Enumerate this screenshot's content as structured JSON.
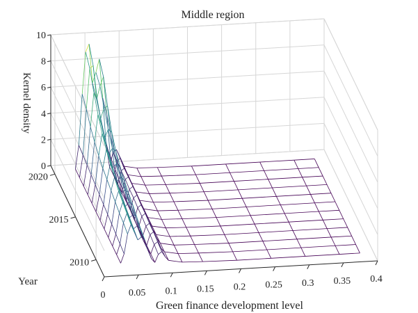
{
  "chart_data": {
    "type": "surface",
    "title": "Middle region",
    "xlabel": "Green finance development level",
    "ylabel": "Year",
    "zlabel": "Kernel density",
    "x_ticks": [
      "0",
      "0.05",
      "0.1",
      "0.15",
      "0.2",
      "0.25",
      "0.3",
      "0.35",
      "0.4"
    ],
    "y_ticks": [
      "2010",
      "2015",
      "2020"
    ],
    "z_ticks": [
      "0",
      "2",
      "4",
      "6",
      "8",
      "10"
    ],
    "xlim": [
      0,
      0.4
    ],
    "ylim": [
      2008,
      2021
    ],
    "zlim": [
      0,
      10
    ],
    "grid": true,
    "colormap": [
      "#440154",
      "#3b528b",
      "#21918c",
      "#5ec962",
      "#fde725"
    ],
    "x_grid": [
      0.03,
      0.035,
      0.04,
      0.045,
      0.05,
      0.055,
      0.06,
      0.065,
      0.07,
      0.075,
      0.08,
      0.085,
      0.09,
      0.095,
      0.1,
      0.12,
      0.15,
      0.2,
      0.25,
      0.3,
      0.35,
      0.38
    ],
    "series": [
      {
        "year": 2009,
        "density": [
          0.3,
          1.0,
          2.5,
          3.2,
          2.6,
          2.0,
          2.2,
          2.0,
          1.2,
          0.5,
          0.2,
          0.8,
          1.0,
          0.6,
          0.3,
          0.1,
          0.05,
          0,
          0,
          0,
          0,
          0
        ]
      },
      {
        "year": 2010,
        "density": [
          0.3,
          1.1,
          2.7,
          3.4,
          2.8,
          2.2,
          2.4,
          2.2,
          1.4,
          0.6,
          0.2,
          0.9,
          1.1,
          0.6,
          0.3,
          0.1,
          0.05,
          0,
          0,
          0,
          0,
          0
        ]
      },
      {
        "year": 2011,
        "density": [
          0.3,
          1.2,
          2.8,
          3.6,
          3.0,
          2.4,
          2.6,
          2.5,
          1.5,
          0.6,
          0.2,
          1.0,
          1.2,
          0.7,
          0.3,
          0.1,
          0.05,
          0,
          0,
          0,
          0,
          0
        ]
      },
      {
        "year": 2012,
        "density": [
          0.3,
          1.3,
          3.0,
          3.8,
          3.2,
          2.6,
          2.9,
          2.8,
          1.7,
          0.7,
          0.2,
          1.0,
          1.2,
          0.7,
          0.3,
          0.1,
          0.05,
          0,
          0,
          0,
          0,
          0
        ]
      },
      {
        "year": 2013,
        "density": [
          0.3,
          1.4,
          3.2,
          4.2,
          3.5,
          2.9,
          3.2,
          3.0,
          1.9,
          0.8,
          0.2,
          1.1,
          1.3,
          0.8,
          0.3,
          0.1,
          0.05,
          0,
          0,
          0,
          0,
          0
        ]
      },
      {
        "year": 2014,
        "density": [
          0.3,
          1.5,
          3.4,
          4.6,
          3.8,
          3.2,
          3.5,
          3.3,
          2.1,
          0.9,
          0.2,
          1.1,
          1.3,
          0.8,
          0.3,
          0.1,
          0.05,
          0,
          0,
          0,
          0,
          0
        ]
      },
      {
        "year": 2015,
        "density": [
          0.3,
          1.6,
          3.6,
          5.0,
          4.3,
          3.6,
          3.9,
          3.7,
          2.4,
          1.0,
          0.3,
          1.2,
          1.4,
          0.8,
          0.3,
          0.1,
          0.05,
          0,
          0,
          0,
          0,
          0
        ]
      },
      {
        "year": 2016,
        "density": [
          0.3,
          1.7,
          3.9,
          5.6,
          4.8,
          4.0,
          4.4,
          4.2,
          2.7,
          1.2,
          0.3,
          1.2,
          1.4,
          0.9,
          0.3,
          0.1,
          0.05,
          0,
          0,
          0,
          0,
          0
        ]
      },
      {
        "year": 2017,
        "density": [
          0.3,
          1.8,
          4.3,
          6.4,
          5.6,
          4.6,
          5.2,
          5.0,
          3.2,
          1.4,
          0.3,
          1.3,
          1.5,
          0.9,
          0.3,
          0.1,
          0.05,
          0,
          0,
          0,
          0,
          0
        ]
      },
      {
        "year": 2018,
        "density": [
          0.3,
          1.9,
          4.8,
          7.4,
          6.8,
          5.4,
          6.2,
          6.3,
          4.0,
          1.6,
          0.3,
          1.3,
          1.5,
          0.9,
          0.3,
          0.1,
          0.05,
          0,
          0,
          0,
          0,
          0
        ]
      },
      {
        "year": 2019,
        "density": [
          0.3,
          2.0,
          5.5,
          8.6,
          8.8,
          6.2,
          7.2,
          7.9,
          5.0,
          1.8,
          0.3,
          1.4,
          1.6,
          1.0,
          0.3,
          0.1,
          0.05,
          0,
          0,
          0,
          0,
          0
        ]
      },
      {
        "year": 2020,
        "density": [
          0.3,
          2.1,
          6.0,
          9.2,
          9.8,
          6.8,
          7.6,
          8.6,
          5.6,
          2.0,
          0.3,
          1.4,
          1.6,
          1.0,
          0.3,
          0.1,
          0.05,
          0,
          0,
          0,
          0,
          0
        ]
      }
    ]
  }
}
